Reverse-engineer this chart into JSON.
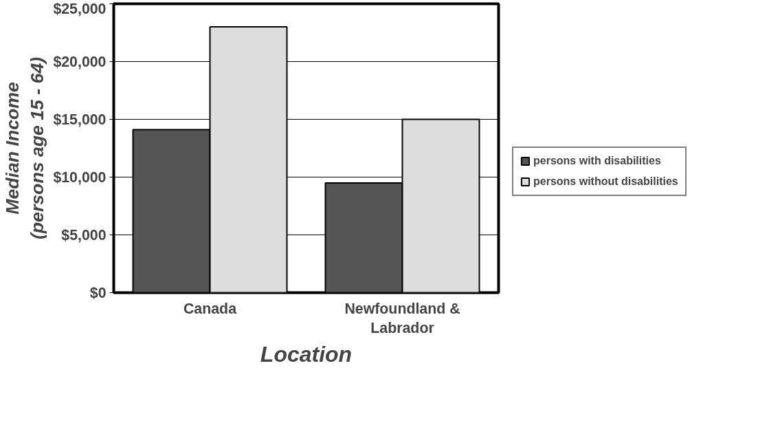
{
  "chart_data": {
    "type": "bar",
    "xlabel": "Location",
    "ylabel": "Median Income\n(persons age 15 - 64)",
    "categories": [
      "Canada",
      "Newfoundland &\nLabrador"
    ],
    "series": [
      {
        "name": "persons with disabilities",
        "color": "#555555",
        "values": [
          14100,
          9500
        ]
      },
      {
        "name": "persons without disabilities",
        "color": "#dddddd",
        "values": [
          23000,
          15000
        ]
      }
    ],
    "ylim": [
      0,
      25000
    ],
    "yticks": [
      {
        "value": 0,
        "label": "$0"
      },
      {
        "value": 5000,
        "label": "$5,000"
      },
      {
        "value": 10000,
        "label": "$10,000"
      },
      {
        "value": 15000,
        "label": "$15,000"
      },
      {
        "value": 20000,
        "label": "$20,000"
      },
      {
        "value": 25000,
        "label": "$25,000"
      }
    ],
    "grid": "y",
    "legend": "right"
  }
}
